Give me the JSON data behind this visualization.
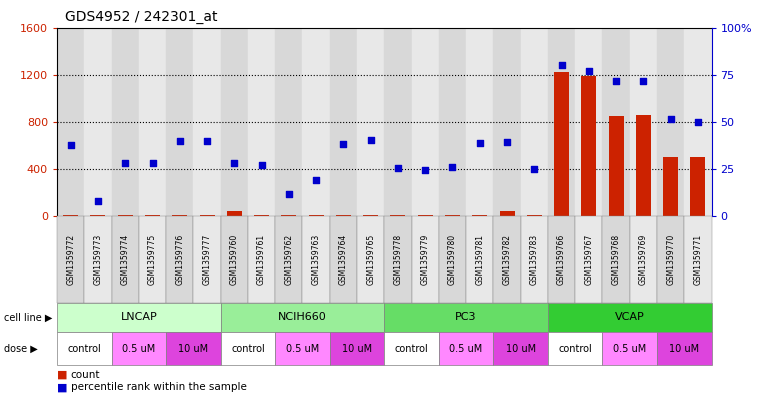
{
  "title": "GDS4952 / 242301_at",
  "samples": [
    "GSM1359772",
    "GSM1359773",
    "GSM1359774",
    "GSM1359775",
    "GSM1359776",
    "GSM1359777",
    "GSM1359760",
    "GSM1359761",
    "GSM1359762",
    "GSM1359763",
    "GSM1359764",
    "GSM1359765",
    "GSM1359778",
    "GSM1359779",
    "GSM1359780",
    "GSM1359781",
    "GSM1359782",
    "GSM1359783",
    "GSM1359766",
    "GSM1359767",
    "GSM1359768",
    "GSM1359769",
    "GSM1359770",
    "GSM1359771"
  ],
  "red_counts": [
    12,
    12,
    12,
    12,
    12,
    12,
    40,
    12,
    12,
    12,
    12,
    12,
    12,
    12,
    12,
    12,
    40,
    12,
    1220,
    1190,
    850,
    860,
    500,
    500
  ],
  "blue_percentile": [
    600,
    130,
    450,
    450,
    640,
    640,
    450,
    430,
    190,
    305,
    610,
    650,
    410,
    390,
    415,
    620,
    630,
    400,
    1280,
    1230,
    1150,
    1150,
    820,
    800
  ],
  "left_ylim": [
    0,
    1600
  ],
  "right_ylim": [
    0,
    100
  ],
  "left_yticks": [
    0,
    400,
    800,
    1200,
    1600
  ],
  "right_yticks": [
    0,
    25,
    50,
    75,
    100
  ],
  "right_yticklabels": [
    "0",
    "25",
    "50",
    "75",
    "100%"
  ],
  "cell_lines": [
    {
      "name": "LNCAP",
      "start": 0,
      "end": 6,
      "color": "#ccffcc"
    },
    {
      "name": "NCIH660",
      "start": 6,
      "end": 12,
      "color": "#99ee99"
    },
    {
      "name": "PC3",
      "start": 12,
      "end": 18,
      "color": "#66dd66"
    },
    {
      "name": "VCAP",
      "start": 18,
      "end": 24,
      "color": "#33cc33"
    }
  ],
  "dose_groups": [
    {
      "name": "control",
      "start": 0,
      "end": 2,
      "color": "#ffffff"
    },
    {
      "name": "0.5 uM",
      "start": 2,
      "end": 4,
      "color": "#ff88ff"
    },
    {
      "name": "10 uM",
      "start": 4,
      "end": 6,
      "color": "#dd44dd"
    },
    {
      "name": "control",
      "start": 6,
      "end": 8,
      "color": "#ffffff"
    },
    {
      "name": "0.5 uM",
      "start": 8,
      "end": 10,
      "color": "#ff88ff"
    },
    {
      "name": "10 uM",
      "start": 10,
      "end": 12,
      "color": "#dd44dd"
    },
    {
      "name": "control",
      "start": 12,
      "end": 14,
      "color": "#ffffff"
    },
    {
      "name": "0.5 uM",
      "start": 14,
      "end": 16,
      "color": "#ff88ff"
    },
    {
      "name": "10 uM",
      "start": 16,
      "end": 18,
      "color": "#dd44dd"
    },
    {
      "name": "control",
      "start": 18,
      "end": 20,
      "color": "#ffffff"
    },
    {
      "name": "0.5 uM",
      "start": 20,
      "end": 22,
      "color": "#ff88ff"
    },
    {
      "name": "10 uM",
      "start": 22,
      "end": 24,
      "color": "#dd44dd"
    }
  ],
  "bar_color": "#cc2200",
  "scatter_color": "#0000cc",
  "left_axis_color": "#cc2200",
  "right_axis_color": "#0000cc",
  "sample_box_color": "#cccccc",
  "bg_color": "#ffffff",
  "grid_yticks": [
    400,
    800,
    1200
  ]
}
